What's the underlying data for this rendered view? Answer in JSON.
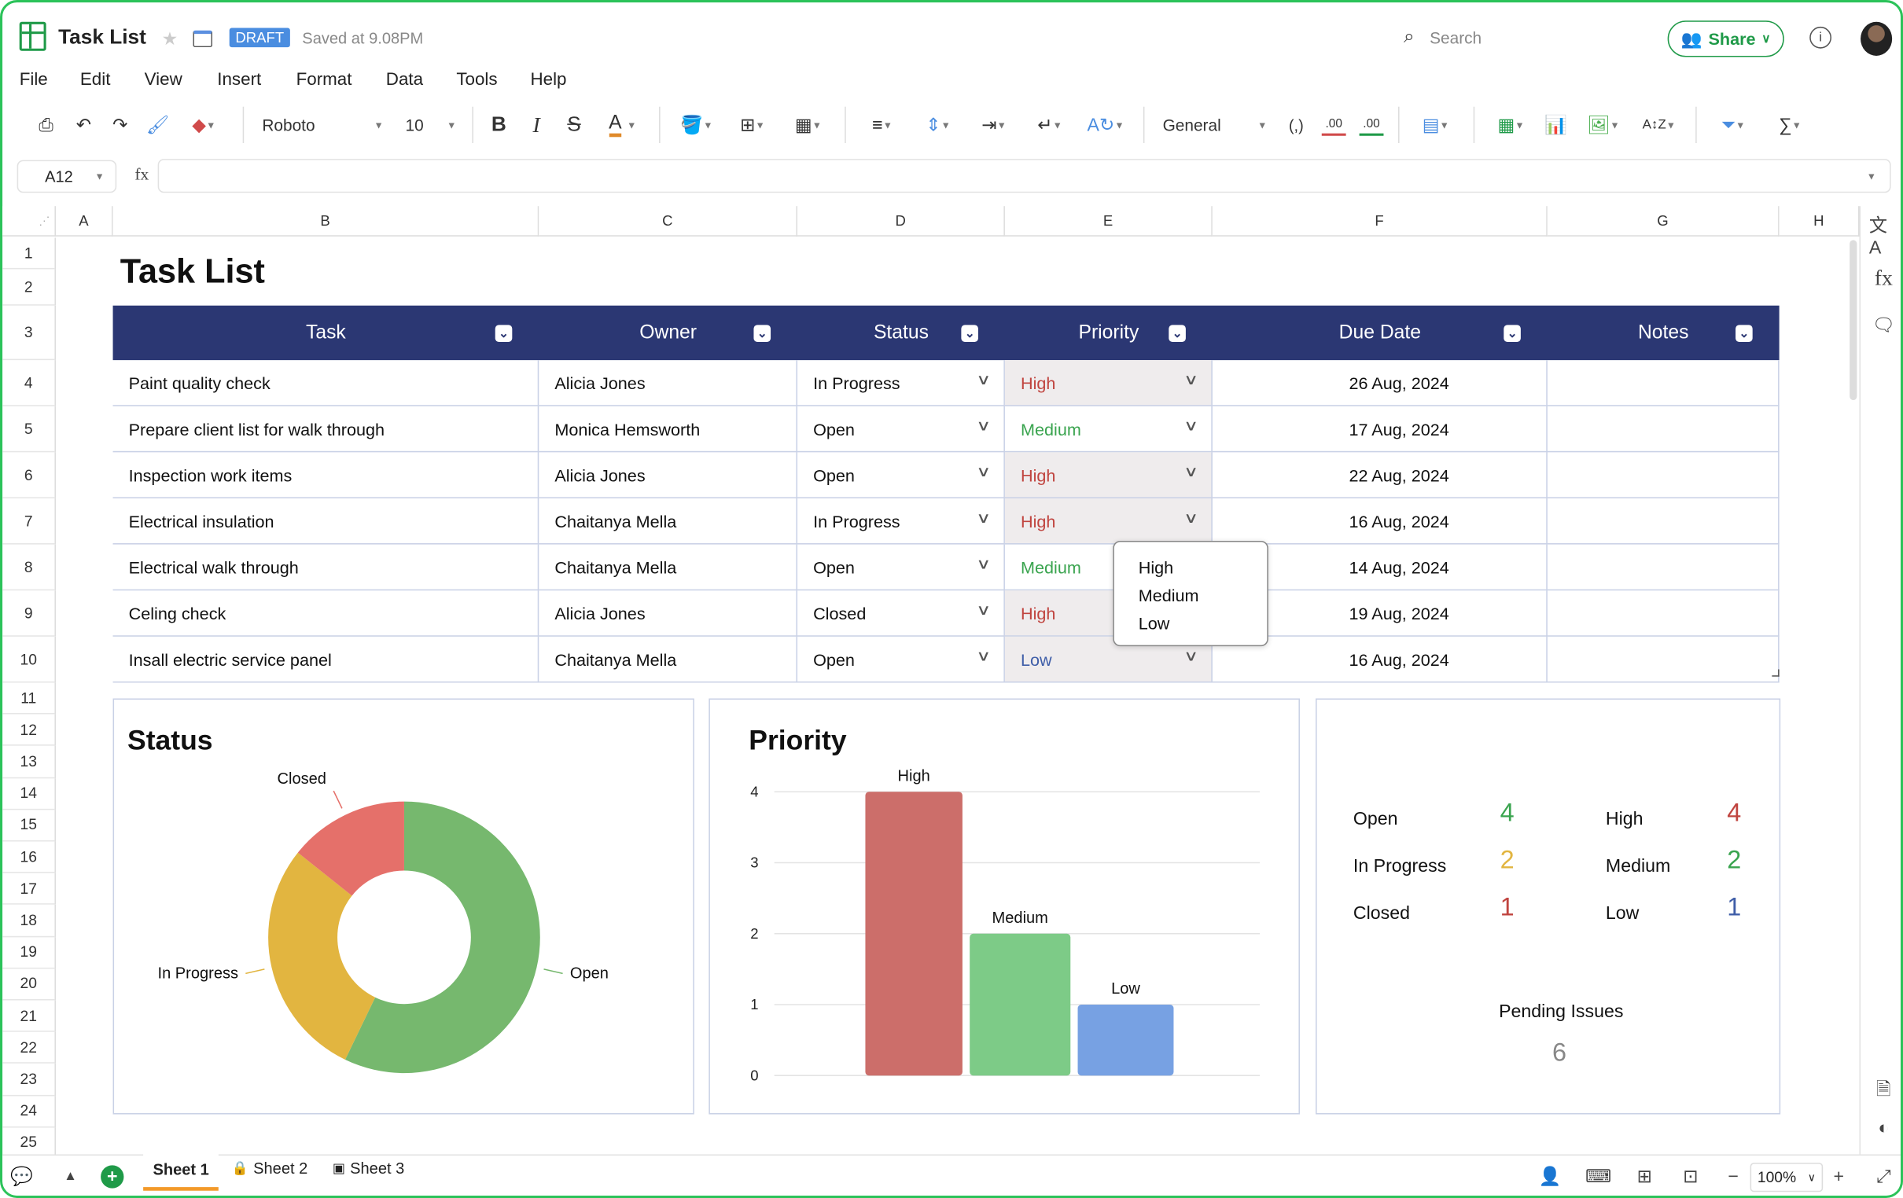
{
  "app": {
    "title": "Task List",
    "badge": "DRAFT",
    "saved": "Saved at 9.08PM",
    "search_placeholder": "Search",
    "share": "Share"
  },
  "menu": [
    "File",
    "Edit",
    "View",
    "Insert",
    "Format",
    "Data",
    "Tools",
    "Help"
  ],
  "toolbar": {
    "font": "Roboto",
    "size": "10",
    "number_format": "General",
    "paren": "(,)",
    "dec_dec": ".00",
    "dec_inc": ".00",
    "bold": "B",
    "italic": "I",
    "strike": "S",
    "fontcolor": "A"
  },
  "formula_bar": {
    "cell_ref": "A12",
    "fx": "fx",
    "value": ""
  },
  "columns": [
    "A",
    "B",
    "C",
    "D",
    "E",
    "F",
    "G",
    "H"
  ],
  "rows": [
    "1",
    "2",
    "3",
    "4",
    "5",
    "6",
    "7",
    "8",
    "9",
    "10",
    "11",
    "12",
    "13",
    "14",
    "15",
    "16",
    "17",
    "18",
    "19",
    "20",
    "21",
    "22",
    "23",
    "24",
    "25"
  ],
  "sheet_title": "Task List",
  "table": {
    "headers": [
      "Task",
      "Owner",
      "Status",
      "Priority",
      "Due Date",
      "Notes"
    ],
    "rows": [
      {
        "task": "Paint quality check",
        "owner": "Alicia Jones",
        "status": "In Progress",
        "priority": "High",
        "due": "26 Aug, 2024",
        "notes": ""
      },
      {
        "task": "Prepare client list for walk through",
        "owner": "Monica Hemsworth",
        "status": "Open",
        "priority": "Medium",
        "due": "17 Aug, 2024",
        "notes": ""
      },
      {
        "task": "Inspection work items",
        "owner": "Alicia Jones",
        "status": "Open",
        "priority": "High",
        "due": "22 Aug, 2024",
        "notes": ""
      },
      {
        "task": "Electrical insulation",
        "owner": "Chaitanya Mella",
        "status": "In Progress",
        "priority": "High",
        "due": "16 Aug, 2024",
        "notes": ""
      },
      {
        "task": "Electrical walk through",
        "owner": "Chaitanya Mella",
        "status": "Open",
        "priority": "Medium",
        "due": "14 Aug, 2024",
        "notes": ""
      },
      {
        "task": "Celing check",
        "owner": "Alicia Jones",
        "status": "Closed",
        "priority": "High",
        "due": "19 Aug, 2024",
        "notes": ""
      },
      {
        "task": "Insall electric service panel",
        "owner": "Chaitanya Mella",
        "status": "Open",
        "priority": "Low",
        "due": "16 Aug, 2024",
        "notes": ""
      }
    ]
  },
  "priority_dropdown": [
    "High",
    "Medium",
    "Low"
  ],
  "colors": {
    "header": "#2b3773",
    "high": "#c0443f",
    "medium": "#3aa44f",
    "low": "#3f5ea8",
    "open": "#76b86e",
    "in_progress": "#e2b540",
    "closed": "#e5706a"
  },
  "chart_data": [
    {
      "type": "pie",
      "title": "Status",
      "categories": [
        "Open",
        "In Progress",
        "Closed"
      ],
      "values": [
        4,
        2,
        1
      ],
      "colors": [
        "#76b86e",
        "#e2b540",
        "#e5706a"
      ],
      "donut": true
    },
    {
      "type": "bar",
      "title": "Priority",
      "categories": [
        "High",
        "Medium",
        "Low"
      ],
      "values": [
        4,
        2,
        1
      ],
      "colors": [
        "#cc6e6a",
        "#7dcb87",
        "#77a1e3"
      ],
      "yticks": [
        "0",
        "1",
        "2",
        "3",
        "4"
      ],
      "ylim": [
        0,
        4
      ],
      "grid": true
    }
  ],
  "summary": {
    "status": [
      {
        "label": "Open",
        "value": "4",
        "color": "#3aa44f"
      },
      {
        "label": "In Progress",
        "value": "2",
        "color": "#e2b540"
      },
      {
        "label": "Closed",
        "value": "1",
        "color": "#c0443f"
      }
    ],
    "priority": [
      {
        "label": "High",
        "value": "4",
        "color": "#c0443f"
      },
      {
        "label": "Medium",
        "value": "2",
        "color": "#3aa44f"
      },
      {
        "label": "Low",
        "value": "1",
        "color": "#3f5ea8"
      }
    ],
    "pending_label": "Pending Issues",
    "pending_value": "6"
  },
  "sheets": [
    "Sheet 1",
    "Sheet 2",
    "Sheet 3"
  ],
  "zoom": "100%"
}
